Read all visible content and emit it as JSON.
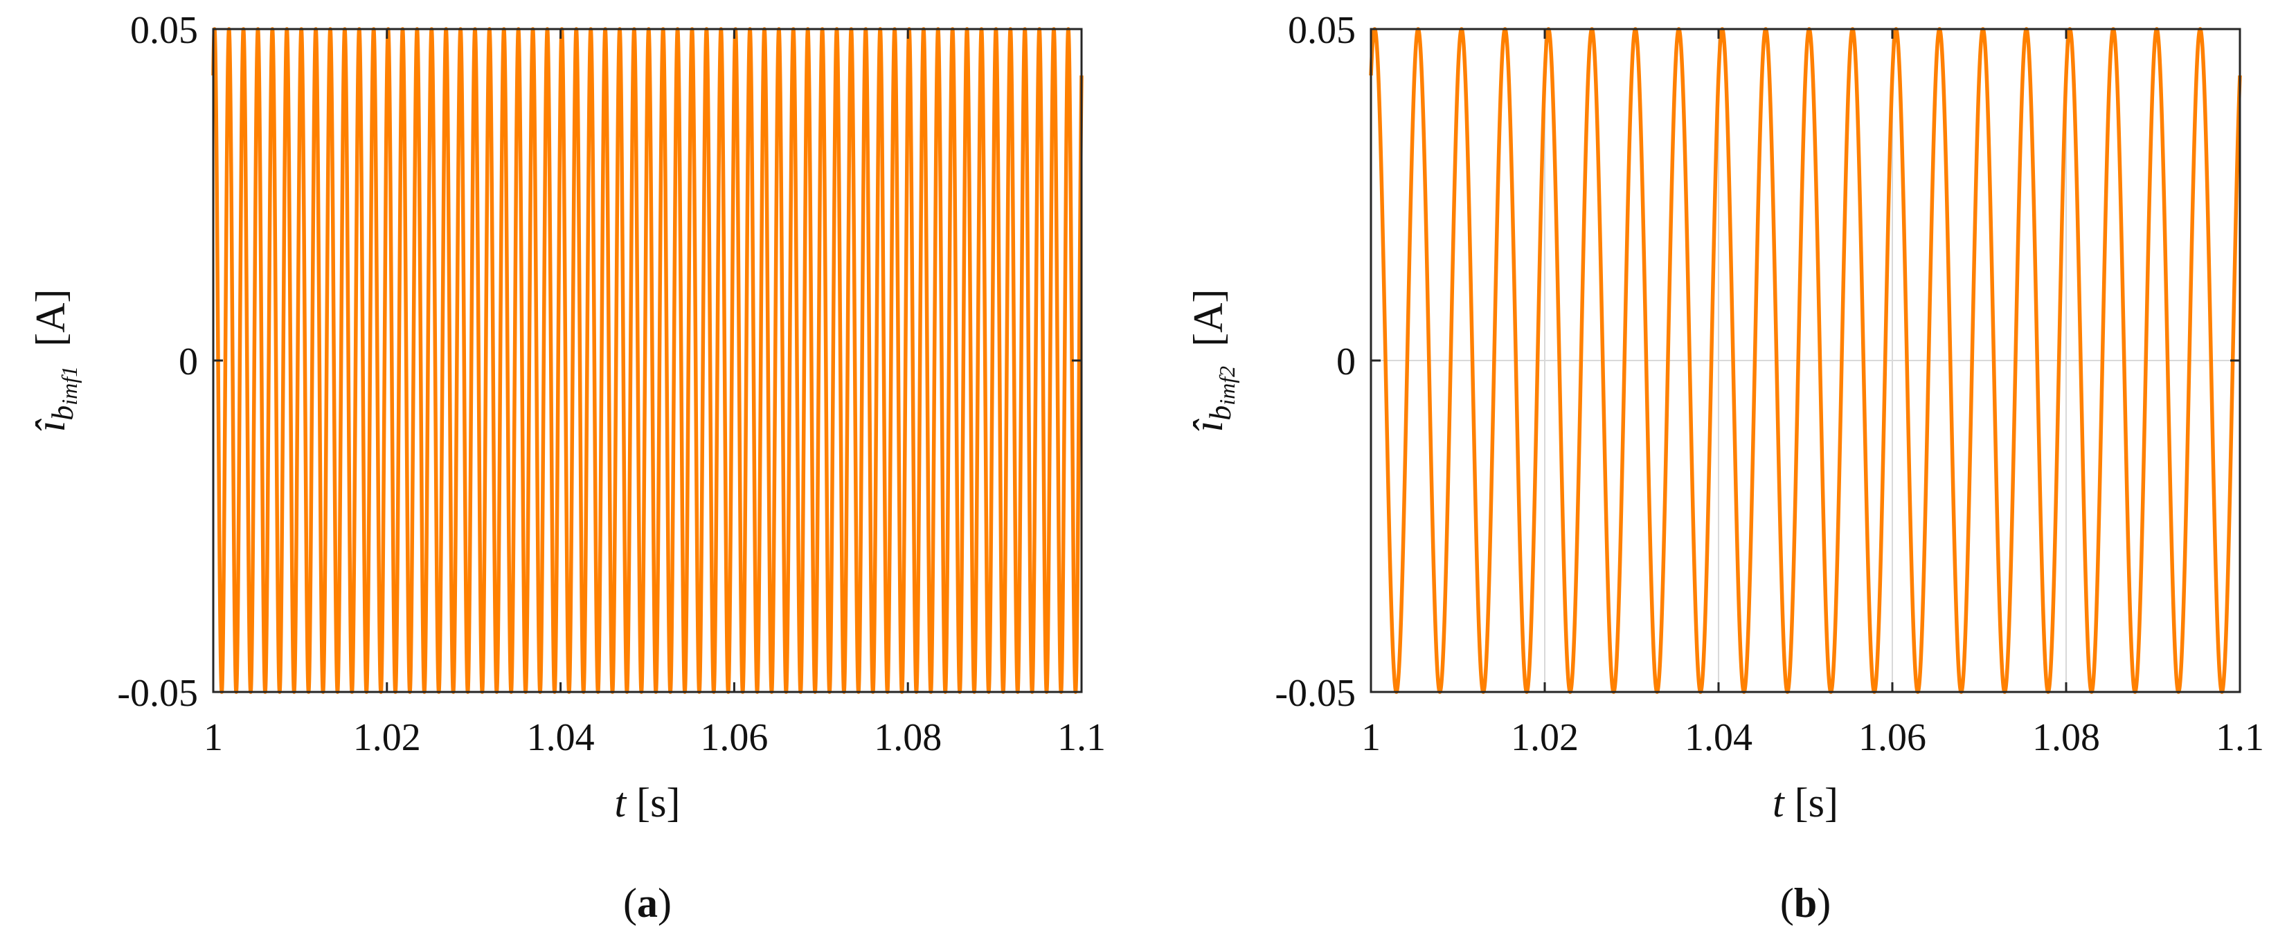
{
  "colors": {
    "series": "#FF8000",
    "axis": "#262626",
    "grid": "#d9d9d9"
  },
  "chart_data": [
    {
      "type": "line",
      "panel": "(a)",
      "caption_letter": "a",
      "xlabel": {
        "var": "t",
        "unit": "[s]"
      },
      "ylabel": {
        "var": "î",
        "sub": "b",
        "subsub": "imf1",
        "unit": "[A]"
      },
      "xlim": [
        1,
        1.1
      ],
      "ylim": [
        -0.05,
        0.05
      ],
      "xticks": [
        1,
        1.02,
        1.04,
        1.06,
        1.08,
        1.1
      ],
      "xticklabels": [
        "1",
        "1.02",
        "1.04",
        "1.06",
        "1.08",
        "1.1"
      ],
      "yticks": [
        -0.05,
        0,
        0.05
      ],
      "yticklabels": [
        "-0.05",
        "0",
        "0.05"
      ],
      "grid": false,
      "series": [
        {
          "kind": "sinusoid",
          "amplitude": 0.05,
          "frequency_hz": 600,
          "value_at_x0": 0.043,
          "x_start": 1,
          "x_end": 1.1
        }
      ]
    },
    {
      "type": "line",
      "panel": "(b)",
      "caption_letter": "b",
      "xlabel": {
        "var": "t",
        "unit": "[s]"
      },
      "ylabel": {
        "var": "î",
        "sub": "b",
        "subsub": "imf2",
        "unit": "[A]"
      },
      "xlim": [
        1,
        1.1
      ],
      "ylim": [
        -0.05,
        0.05
      ],
      "xticks": [
        1,
        1.02,
        1.04,
        1.06,
        1.08,
        1.1
      ],
      "xticklabels": [
        "1",
        "1.02",
        "1.04",
        "1.06",
        "1.08",
        "1.1"
      ],
      "yticks": [
        -0.05,
        0,
        0.05
      ],
      "yticklabels": [
        "-0.05",
        "0",
        "0.05"
      ],
      "grid": true,
      "series": [
        {
          "kind": "sinusoid",
          "amplitude": 0.05,
          "frequency_hz": 200,
          "value_at_x0": 0.043,
          "x_start": 1,
          "x_end": 1.1
        }
      ]
    }
  ]
}
